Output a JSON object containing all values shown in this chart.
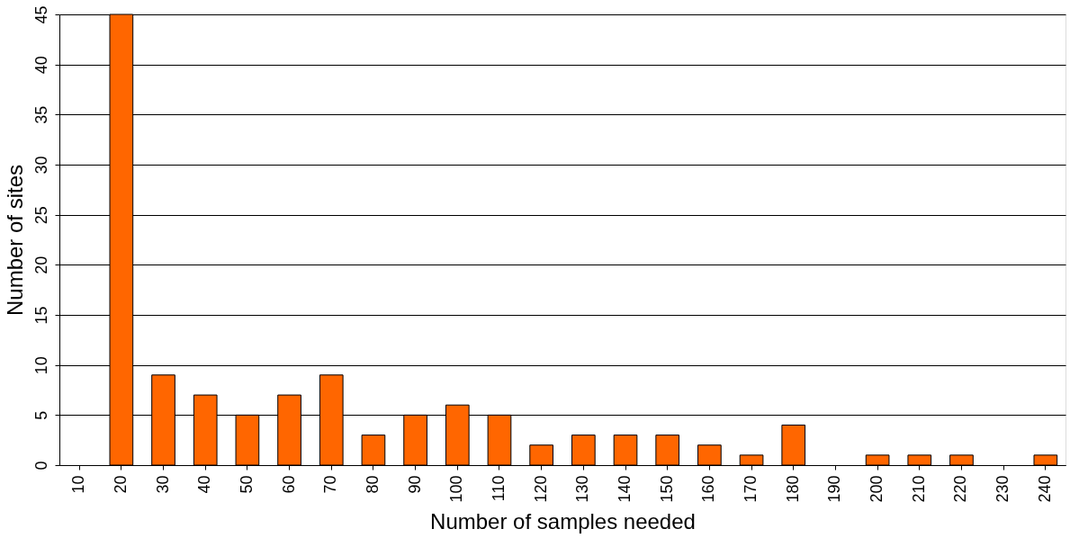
{
  "chart_data": {
    "type": "bar",
    "xlabel": "Number of samples needed",
    "ylabel": "Number of sites",
    "categories": [
      "10",
      "20",
      "30",
      "40",
      "50",
      "60",
      "70",
      "80",
      "90",
      "100",
      "110",
      "120",
      "130",
      "140",
      "150",
      "160",
      "170",
      "180",
      "190",
      "200",
      "210",
      "220",
      "230",
      "240"
    ],
    "values": [
      0,
      45,
      9,
      7,
      5,
      7,
      9,
      3,
      5,
      6,
      5,
      2,
      3,
      3,
      3,
      2,
      1,
      4,
      0,
      1,
      1,
      1,
      0,
      1
    ],
    "color": "#ff6600",
    "ylim": [
      0,
      45
    ],
    "yticks": [
      0,
      5,
      10,
      15,
      20,
      25,
      30,
      35,
      40,
      45
    ],
    "grid": "y"
  }
}
